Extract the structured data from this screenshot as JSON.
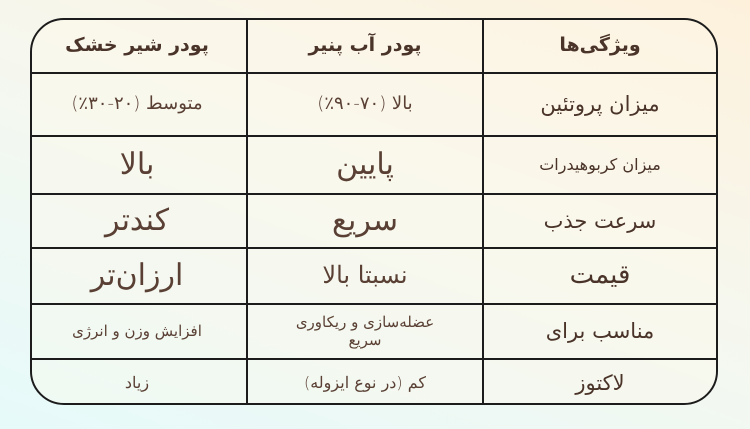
{
  "headers": {
    "feature": "ویژگی‌ها",
    "whey": "پودر آب پنیر",
    "milk": "پودر شیر خشک"
  },
  "rows": [
    {
      "feature": "میزان پروتئین",
      "whey": "بالا (۷۰-۹۰٪)",
      "milk": "متوسط (۲۰-۳۰٪)"
    },
    {
      "feature": "میزان کربوهیدرات",
      "whey": "پایین",
      "milk": "بالا"
    },
    {
      "feature": "سرعت جذب",
      "whey": "سریع",
      "milk": "کندتر"
    },
    {
      "feature": "قیمت",
      "whey": "نسبتا بالا",
      "milk": "ارزان‌تر"
    },
    {
      "feature": "مناسب برای",
      "whey": "عضله‌سازی و ریکاوری سریع",
      "milk": "افزایش وزن و انرژی"
    },
    {
      "feature": "لاکتوز",
      "whey": "کم (در نوع ایزوله)",
      "milk": "زیاد"
    }
  ],
  "colors": {
    "text": "#4a3328",
    "border": "#1c1c1c"
  }
}
